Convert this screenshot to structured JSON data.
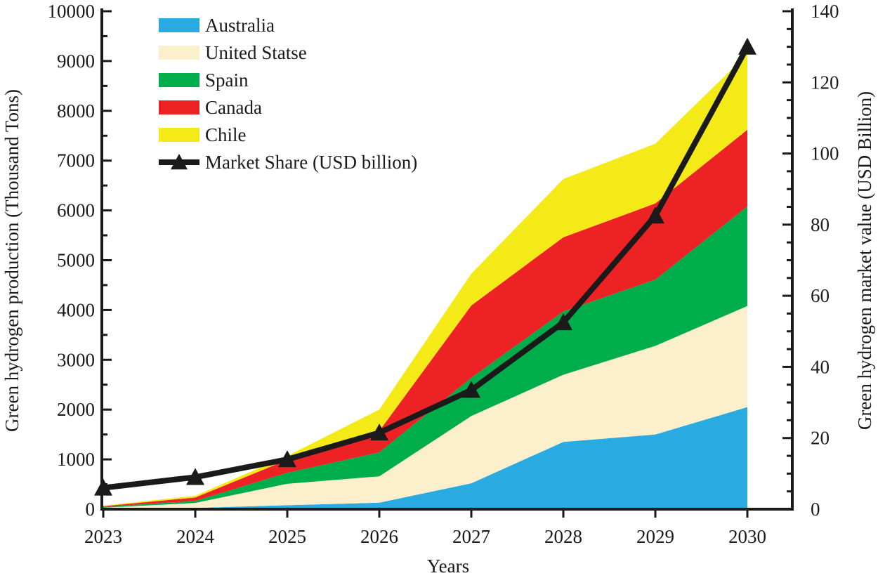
{
  "chart_data": {
    "type": "area",
    "subtype": "stacked area with line on secondary axis",
    "xlabel": "Years",
    "ylabel": "Green hydrogen production (Thousand Tons)",
    "y2label": "Green hydrogen market value (USD Billion)",
    "ylim": [
      0,
      10000
    ],
    "y2lim": [
      0,
      140
    ],
    "yticks": [
      0,
      1000,
      2000,
      3000,
      4000,
      5000,
      6000,
      7000,
      8000,
      9000,
      10000
    ],
    "y2ticks": [
      0,
      20,
      40,
      60,
      80,
      100,
      120,
      140
    ],
    "x": [
      2023,
      2024,
      2025,
      2026,
      2027,
      2028,
      2029,
      2030
    ],
    "xticks": [
      "2023",
      "2024",
      "2025",
      "2026",
      "2027",
      "2028",
      "2029",
      "2030"
    ],
    "series": [
      {
        "name": "Australia",
        "color": "#29abe2",
        "values": [
          10,
          25,
          80,
          130,
          520,
          1350,
          1500,
          2050
        ]
      },
      {
        "name": "United Statse",
        "color": "#fcf0cc",
        "values": [
          20,
          100,
          430,
          530,
          1350,
          1350,
          1780,
          2030
        ]
      },
      {
        "name": "Spain",
        "color": "#00ad4b",
        "values": [
          20,
          40,
          220,
          480,
          770,
          1270,
          1330,
          2000
        ]
      },
      {
        "name": "Canada",
        "color": "#ed2224",
        "values": [
          10,
          70,
          260,
          430,
          1450,
          1490,
          1530,
          1540
        ]
      },
      {
        "name": "Chile",
        "color": "#f4ea18",
        "values": [
          10,
          35,
          80,
          430,
          640,
          1170,
          1200,
          1520
        ]
      }
    ],
    "line_series": {
      "name": "Market Share (USD billion)",
      "color": "#1a1a1a",
      "marker": "triangle",
      "axis": "right",
      "values": [
        6,
        9,
        14,
        21.5,
        33.5,
        52.5,
        82.5,
        130
      ]
    },
    "legend_position": "top-left"
  }
}
